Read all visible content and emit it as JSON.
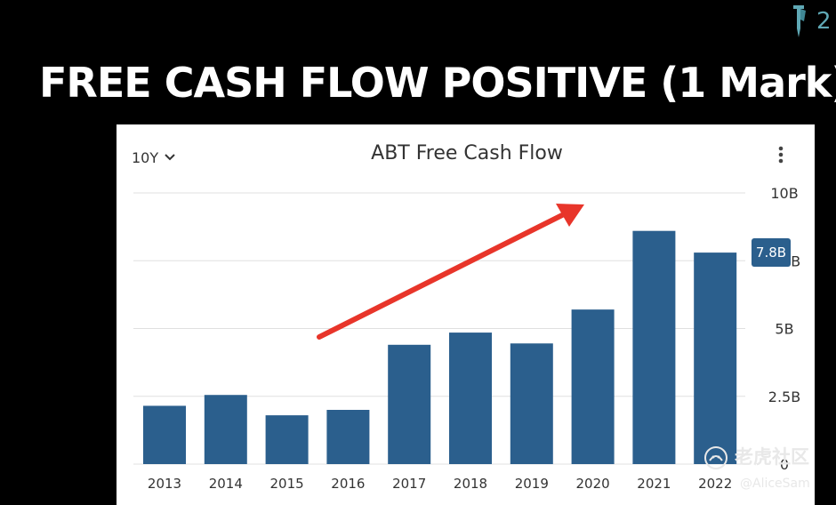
{
  "slide": {
    "title": "FREE CASH FLOW POSITIVE (1 Mark)",
    "logo_text": "2"
  },
  "chart_header": {
    "range_label": "10Y",
    "range_icon": "chevron-down-icon",
    "menu_icon": "more-vertical-icon"
  },
  "badge": {
    "label": "7.8B"
  },
  "annotation": {
    "type": "arrow",
    "color": "#e8352a",
    "direction": "up-right"
  },
  "watermark": {
    "site": "老虎社区",
    "user": "@AliceSam"
  },
  "colors": {
    "bar": "#2b5f8d",
    "grid": "#e0e0e0",
    "text": "#333333",
    "background": "#ffffff"
  },
  "chart_data": {
    "type": "bar",
    "title": "ABT Free Cash Flow",
    "xlabel": "",
    "ylabel": "",
    "categories": [
      "2013",
      "2014",
      "2015",
      "2016",
      "2017",
      "2018",
      "2019",
      "2020",
      "2021",
      "2022"
    ],
    "values": [
      2.15,
      2.55,
      1.8,
      2.0,
      4.4,
      4.85,
      4.45,
      5.7,
      8.6,
      7.8
    ],
    "unit": "B",
    "ylim": [
      0,
      10
    ],
    "yticks": [
      0,
      2.5,
      5,
      7.5,
      10
    ],
    "ytick_labels": [
      "0",
      "2.5B",
      "5B",
      "7.5B",
      "10B"
    ],
    "grid": true,
    "y_axis_side": "right"
  }
}
